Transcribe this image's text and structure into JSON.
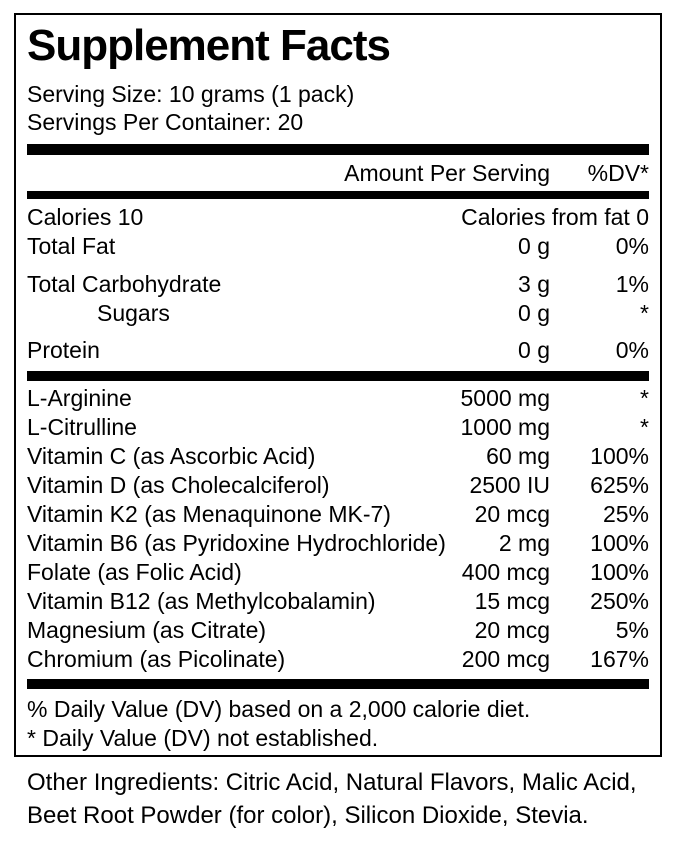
{
  "label": {
    "title": "Supplement Facts",
    "serving_size": "Serving Size: 10 grams (1 pack)",
    "servings_per_container": "Servings Per Container: 20",
    "header": {
      "amount": "Amount Per Serving",
      "dv": "%DV*"
    },
    "nutrition_rows": [
      {
        "name": "Calories 10",
        "right": "Calories from fat 0"
      },
      {
        "name": "Total Fat",
        "amount": "0 g",
        "dv": "0%"
      },
      {
        "name": "Total Carbohydrate",
        "amount": "3 g",
        "dv": "1%"
      },
      {
        "name": "Sugars",
        "amount": "0 g",
        "dv": "*"
      },
      {
        "name": "Protein",
        "amount": "0 g",
        "dv": "0%"
      }
    ],
    "supplement_rows": [
      {
        "name": "L-Arginine",
        "amount": "5000 mg",
        "dv": "*"
      },
      {
        "name": "L-Citrulline",
        "amount": "1000 mg",
        "dv": "*"
      },
      {
        "name": "Vitamin C (as Ascorbic Acid)",
        "amount": "60 mg",
        "dv": "100%"
      },
      {
        "name": "Vitamin D (as Cholecalciferol)",
        "amount": "2500 IU",
        "dv": "625%"
      },
      {
        "name": "Vitamin K2 (as Menaquinone MK-7)",
        "amount": "20 mcg",
        "dv": "25%"
      },
      {
        "name": "Vitamin B6 (as Pyridoxine Hydrochloride)",
        "amount": "2 mg",
        "dv": "100%"
      },
      {
        "name": "Folate (as Folic Acid)",
        "amount": "400 mcg",
        "dv": "100%"
      },
      {
        "name": "Vitamin B12 (as Methylcobalamin)",
        "amount": "15 mcg",
        "dv": "250%"
      },
      {
        "name": "Magnesium (as Citrate)",
        "amount": "20 mcg",
        "dv": "5%"
      },
      {
        "name": "Chromium (as Picolinate)",
        "amount": "200 mcg",
        "dv": "167%"
      }
    ],
    "footnotes": [
      "% Daily Value (DV) based on a 2,000 calorie diet.",
      "* Daily Value (DV) not established."
    ],
    "other_ingredients": "Other Ingredients: Citric Acid, Natural Flavors, Malic Acid, Beet Root Powder (for color), Silicon Dioxide, Stevia.",
    "colors": {
      "text": "#000000",
      "background": "#ffffff",
      "border": "#000000"
    }
  }
}
